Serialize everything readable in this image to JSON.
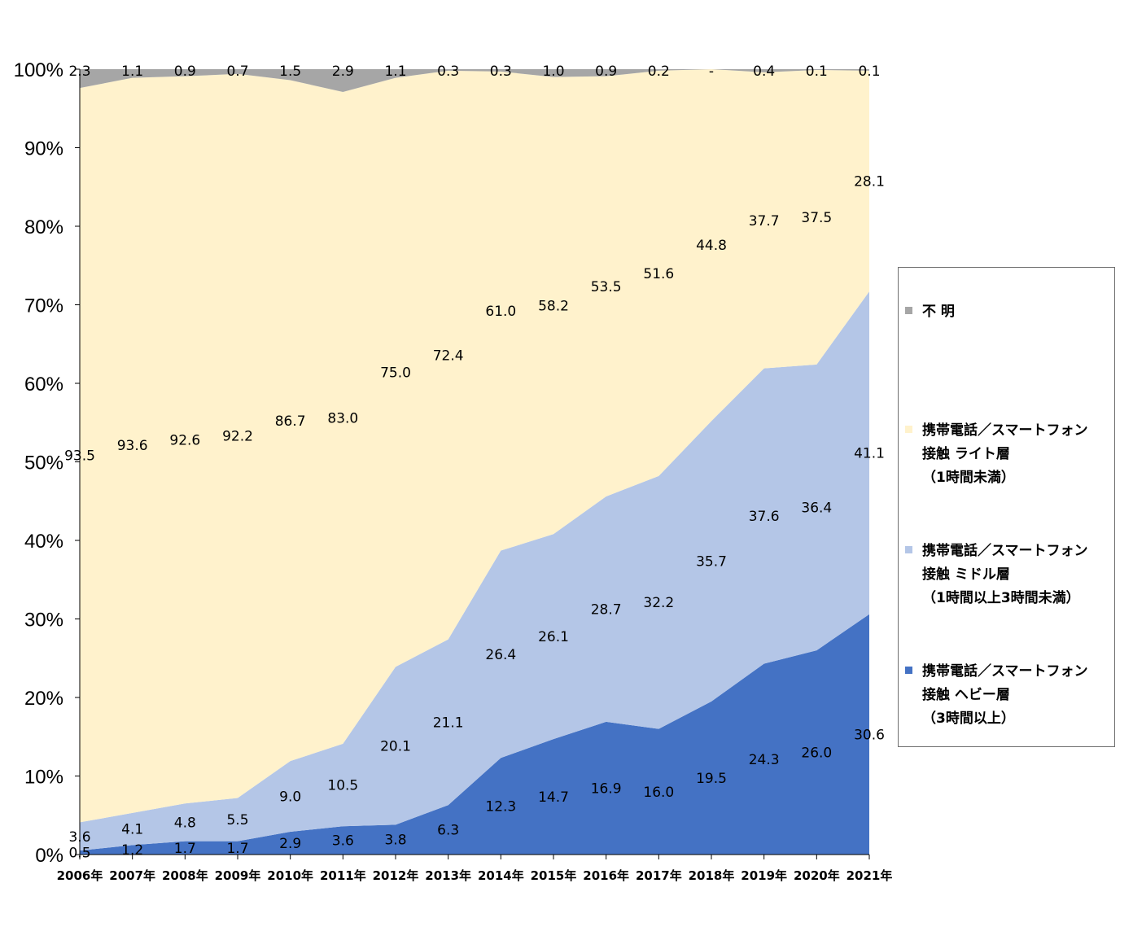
{
  "chart_data": {
    "type": "area",
    "stacked": true,
    "percent": true,
    "categories": [
      "2006年",
      "2007年",
      "2008年",
      "2009年",
      "2010年",
      "2011年",
      "2012年",
      "2013年",
      "2014年",
      "2015年",
      "2016年",
      "2017年",
      "2018年",
      "2019年",
      "2020年",
      "2021年"
    ],
    "ylim": [
      0,
      100
    ],
    "yticks": [
      "0%",
      "10%",
      "20%",
      "30%",
      "40%",
      "50%",
      "60%",
      "70%",
      "80%",
      "90%",
      "100%"
    ],
    "series": [
      {
        "name": "携帯電話／スマートフォン\n接触 ヘビー層\n（3時間以上）",
        "color": "#4472c4",
        "values": [
          0.5,
          1.2,
          1.7,
          1.7,
          2.9,
          3.6,
          3.8,
          6.3,
          12.3,
          14.7,
          16.9,
          16.0,
          19.5,
          24.3,
          26.0,
          30.6
        ],
        "labels": [
          "0.5",
          "1.2",
          "1.7",
          "1.7",
          "2.9",
          "3.6",
          "3.8",
          "6.3",
          "12.3",
          "14.7",
          "16.9",
          "16.0",
          "19.5",
          "24.3",
          "26.0",
          "30.6"
        ]
      },
      {
        "name": "携帯電話／スマートフォン\n接触 ミドル層\n（1時間以上3時間未満）",
        "color": "#b4c6e7",
        "values": [
          3.6,
          4.1,
          4.8,
          5.5,
          9.0,
          10.5,
          20.1,
          21.1,
          26.4,
          26.1,
          28.7,
          32.2,
          35.7,
          37.6,
          36.4,
          41.1
        ],
        "labels": [
          "3.6",
          "4.1",
          "4.8",
          "5.5",
          "9.0",
          "10.5",
          "20.1",
          "21.1",
          "26.4",
          "26.1",
          "28.7",
          "32.2",
          "35.7",
          "37.6",
          "36.4",
          "41.1"
        ]
      },
      {
        "name": "携帯電話／スマートフォン\n接触 ライト層\n（1時間未満）",
        "color": "#fff2cc",
        "values": [
          93.5,
          93.6,
          92.6,
          92.2,
          86.7,
          83.0,
          75.0,
          72.4,
          61.0,
          58.2,
          53.5,
          51.6,
          44.8,
          37.7,
          37.5,
          28.1
        ],
        "labels": [
          "93.5",
          "93.6",
          "92.6",
          "92.2",
          "86.7",
          "83.0",
          "75.0",
          "72.4",
          "61.0",
          "58.2",
          "53.5",
          "51.6",
          "44.8",
          "37.7",
          "37.5",
          "28.1"
        ]
      },
      {
        "name": "不 明",
        "color": "#a6a6a6",
        "values": [
          2.3,
          1.1,
          0.9,
          0.7,
          1.5,
          2.9,
          1.1,
          0.3,
          0.3,
          1.0,
          0.9,
          0.2,
          0,
          0.4,
          0.1,
          0.1
        ],
        "labels": [
          "2.3",
          "1.1",
          "0.9",
          "0.7",
          "1.5",
          "2.9",
          "1.1",
          "0.3",
          "0.3",
          "1.0",
          "0.9",
          "0.2",
          "-",
          "0.4",
          "0.1",
          "0.1"
        ]
      }
    ],
    "legend_position": "right"
  }
}
